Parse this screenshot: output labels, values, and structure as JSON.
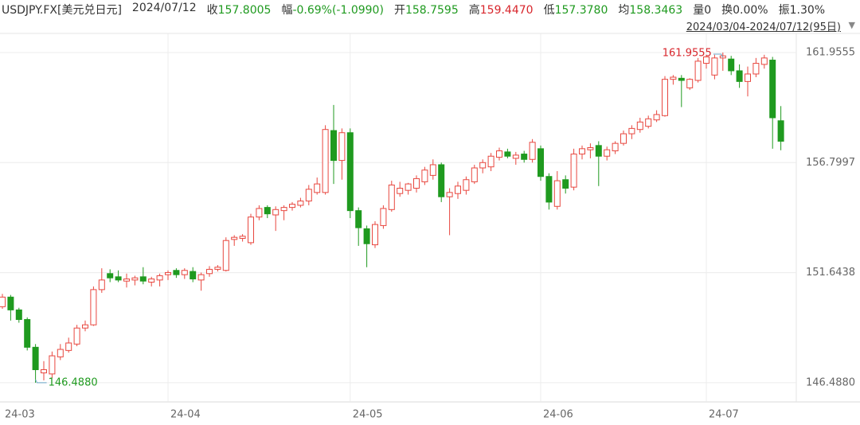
{
  "header": {
    "symbol": "USDJPY.FX[美元兑日元]",
    "date": "2024/07/12",
    "stats": [
      {
        "label": "收",
        "value": "157.8005",
        "color": "#1f9a1f"
      },
      {
        "label": "幅",
        "value": "-0.69%(-1.0990)",
        "color": "#1f9a1f"
      },
      {
        "label": "开",
        "value": "158.7595",
        "color": "#1f9a1f"
      },
      {
        "label": "高",
        "value": "159.4470",
        "color": "#d8262c"
      },
      {
        "label": "低",
        "value": "157.3780",
        "color": "#1f9a1f"
      },
      {
        "label": "均",
        "value": "158.3463",
        "color": "#1f9a1f"
      },
      {
        "label": "量",
        "value": "0",
        "color": "#333333"
      },
      {
        "label": "换",
        "value": "0.00%",
        "color": "#333333"
      },
      {
        "label": "振",
        "value": "1.30%",
        "color": "#333333"
      }
    ],
    "range": "2024/03/04-2024/07/12(95日)"
  },
  "chart_data": {
    "type": "candlestick",
    "categories": [
      "24-03",
      null,
      null,
      null,
      null,
      null,
      null,
      null,
      null,
      null,
      null,
      null,
      null,
      null,
      null,
      null,
      null,
      null,
      null,
      null,
      "24-04",
      null,
      null,
      null,
      null,
      null,
      null,
      null,
      null,
      null,
      null,
      null,
      null,
      null,
      null,
      null,
      null,
      null,
      null,
      null,
      null,
      null,
      "24-05",
      null,
      null,
      null,
      null,
      null,
      null,
      null,
      null,
      null,
      null,
      null,
      null,
      null,
      null,
      null,
      null,
      null,
      null,
      null,
      null,
      null,
      null,
      "24-06",
      null,
      null,
      null,
      null,
      null,
      null,
      null,
      null,
      null,
      null,
      null,
      null,
      null,
      null,
      null,
      null,
      null,
      null,
      null,
      "24-07",
      null,
      null,
      null,
      null,
      null,
      null,
      null,
      null,
      null
    ],
    "open": [
      150.05,
      150.5,
      149.9,
      149.45,
      148.15,
      146.95,
      146.9,
      147.7,
      148.0,
      148.3,
      149.05,
      149.2,
      150.85,
      151.6,
      151.45,
      151.25,
      151.3,
      151.45,
      151.2,
      151.3,
      151.55,
      151.75,
      151.55,
      151.7,
      151.3,
      151.6,
      151.8,
      151.75,
      153.2,
      153.25,
      153.05,
      154.25,
      154.7,
      154.35,
      154.55,
      154.7,
      154.8,
      155.0,
      155.4,
      155.4,
      158.3,
      156.9,
      158.2,
      154.55,
      153.7,
      152.95,
      153.85,
      154.6,
      155.35,
      155.5,
      155.6,
      155.9,
      156.2,
      156.7,
      155.2,
      155.35,
      155.5,
      155.9,
      156.55,
      156.6,
      157.05,
      157.3,
      157.0,
      157.2,
      156.95,
      157.45,
      156.15,
      154.75,
      156.0,
      155.65,
      157.2,
      157.4,
      157.6,
      157.1,
      157.35,
      157.7,
      158.15,
      158.35,
      158.5,
      158.8,
      159.0,
      160.7,
      160.75,
      160.3,
      160.65,
      161.45,
      160.9,
      161.7,
      161.65,
      161.1,
      160.6,
      160.95,
      161.4,
      161.6,
      158.7595
    ],
    "high": [
      150.65,
      150.6,
      150.0,
      149.55,
      148.3,
      147.5,
      147.95,
      148.3,
      148.6,
      149.2,
      149.4,
      151.0,
      151.85,
      151.8,
      151.75,
      151.6,
      151.5,
      151.9,
      151.45,
      151.6,
      151.75,
      151.85,
      151.85,
      151.9,
      151.65,
      151.95,
      152.0,
      153.3,
      153.4,
      153.45,
      154.4,
      154.8,
      154.8,
      154.75,
      154.8,
      154.95,
      155.15,
      155.75,
      156.1,
      158.55,
      159.5,
      158.4,
      158.4,
      154.7,
      153.85,
      154.05,
      154.8,
      155.95,
      155.9,
      155.85,
      156.2,
      156.6,
      156.95,
      156.8,
      155.6,
      155.9,
      156.15,
      156.7,
      156.95,
      157.25,
      157.5,
      157.45,
      157.3,
      157.35,
      157.9,
      157.6,
      156.3,
      156.4,
      156.2,
      157.45,
      157.6,
      157.7,
      157.8,
      157.55,
      157.8,
      158.3,
      158.55,
      158.9,
      159.0,
      159.25,
      160.85,
      160.9,
      160.9,
      160.75,
      161.7,
      161.85,
      161.85,
      161.9555,
      161.8,
      161.4,
      161.3,
      161.7,
      161.85,
      161.75,
      159.447
    ],
    "low": [
      149.95,
      149.4,
      149.3,
      148.0,
      146.488,
      146.6,
      146.7,
      147.55,
      147.9,
      148.2,
      148.9,
      149.15,
      150.7,
      151.2,
      151.2,
      150.95,
      151.05,
      151.1,
      151.0,
      151.0,
      151.3,
      151.4,
      151.35,
      151.2,
      150.8,
      151.45,
      151.7,
      151.7,
      152.9,
      153.1,
      152.95,
      154.1,
      154.2,
      153.6,
      154.1,
      154.55,
      154.7,
      154.8,
      155.3,
      155.3,
      155.8,
      156.0,
      154.2,
      152.9,
      151.9,
      152.8,
      153.7,
      154.5,
      155.2,
      155.3,
      155.4,
      155.75,
      156.0,
      154.95,
      153.4,
      155.1,
      155.3,
      155.8,
      156.3,
      156.4,
      156.9,
      157.0,
      156.7,
      156.8,
      156.8,
      155.95,
      154.6,
      154.6,
      155.35,
      155.5,
      156.95,
      157.0,
      155.7,
      156.9,
      157.2,
      157.6,
      157.9,
      158.2,
      158.4,
      158.7,
      158.95,
      160.45,
      159.4,
      160.2,
      160.55,
      161.2,
      160.7,
      161.1,
      160.9,
      160.3,
      159.9,
      160.8,
      161.2,
      157.45,
      157.378
    ],
    "close": [
      150.5,
      149.9,
      149.45,
      148.15,
      147.1,
      147.1,
      147.75,
      148.05,
      148.35,
      149.05,
      149.2,
      150.85,
      151.3,
      151.4,
      151.3,
      151.35,
      151.4,
      151.25,
      151.35,
      151.5,
      151.65,
      151.55,
      151.75,
      151.35,
      151.55,
      151.8,
      151.9,
      153.15,
      153.3,
      153.35,
      154.25,
      154.65,
      154.4,
      154.6,
      154.7,
      154.85,
      155.0,
      155.55,
      155.8,
      158.35,
      156.9,
      158.2,
      154.55,
      153.75,
      153.0,
      153.9,
      154.65,
      155.75,
      155.6,
      155.8,
      156.05,
      156.45,
      156.7,
      155.2,
      155.4,
      155.7,
      156.0,
      156.55,
      156.8,
      157.1,
      157.35,
      157.1,
      157.15,
      156.95,
      157.75,
      156.15,
      154.95,
      155.95,
      155.6,
      157.2,
      157.45,
      157.5,
      157.1,
      157.4,
      157.7,
      158.15,
      158.4,
      158.7,
      158.85,
      159.05,
      160.7,
      160.8,
      160.65,
      160.7,
      161.55,
      161.75,
      161.7,
      161.8,
      161.1,
      160.6,
      160.95,
      161.45,
      161.7,
      158.9,
      157.8005
    ],
    "up_color": "#e8473f",
    "down_color": "#1f9a1f",
    "high_label": "161.9555",
    "low_label": "146.4880",
    "ylim": [
      145.59,
      162.85
    ],
    "yticks": [
      {
        "value": 146.488,
        "label": "146.4880"
      },
      {
        "value": 151.6438,
        "label": "151.6438"
      },
      {
        "value": 156.7997,
        "label": "156.7997"
      },
      {
        "value": 161.9555,
        "label": "161.9555"
      }
    ],
    "grid": true
  }
}
